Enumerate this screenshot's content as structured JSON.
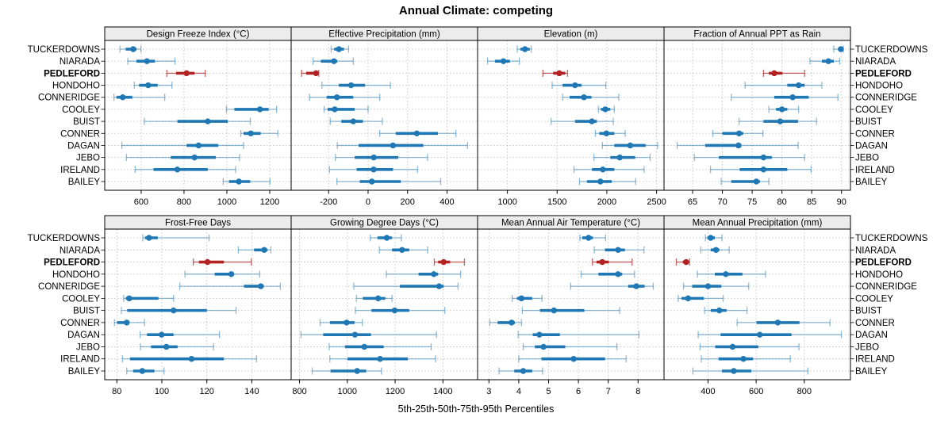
{
  "title": "Annual Climate: competing",
  "caption": "5th-25th-50th-75th-95th Percentiles",
  "style": {
    "series_color": "#1f77b4",
    "series_color_light": "rgba(31,119,180,0.5)",
    "highlight_color": "#b22222",
    "highlight_color_light": "rgba(178,34,34,0.7)",
    "strip_bg": "#ececec",
    "grid_color": "#c9c9c9",
    "border_color": "#000000",
    "panel_bg": "#ffffff"
  },
  "sites": [
    "TUCKERDOWNS",
    "NIARADA",
    "PEDLEFORD",
    "HONDOHO",
    "CONNERIDGE",
    "COOLEY",
    "BUIST",
    "CONNER",
    "DAGAN",
    "JEBO",
    "IRELAND",
    "BAILEY"
  ],
  "highlight_site": "PEDLEFORD",
  "chart_data": {
    "type": "multi-panel dot plot with 5-95 percentile error bars (lattice style)",
    "percentiles": [
      "5th",
      "25th",
      "50th",
      "75th",
      "95th"
    ],
    "site_labels_shown": "both left and right sides, highlight site in bold",
    "grid": "dashed light-gray vertical and horizontal gridlines",
    "panels": [
      {
        "title": "Design Freeze Index (°C)",
        "xlim": [
          430,
          1300
        ],
        "ticks": [
          600,
          800,
          1000,
          1200
        ],
        "series": [
          [
            501,
            528,
            563,
            578,
            599
          ],
          [
            538,
            578,
            627,
            664,
            758
          ],
          [
            720,
            763,
            812,
            849,
            899
          ],
          [
            568,
            590,
            633,
            677,
            744
          ],
          [
            473,
            485,
            514,
            559,
            710
          ],
          [
            998,
            1035,
            1154,
            1195,
            1232
          ],
          [
            615,
            769,
            911,
            1004,
            1109
          ],
          [
            1065,
            1078,
            1112,
            1158,
            1238
          ],
          [
            510,
            812,
            868,
            960,
            1078
          ],
          [
            531,
            738,
            849,
            948,
            1059
          ],
          [
            572,
            658,
            769,
            911,
            1041
          ],
          [
            983,
            1010,
            1056,
            1109,
            1201
          ]
        ]
      },
      {
        "title": "Effective Precipitation (mm)",
        "xlim": [
          -390,
          555
        ],
        "ticks": [
          -200,
          0,
          200,
          400
        ],
        "series": [
          [
            -187,
            -172,
            -148,
            -122,
            -99
          ],
          [
            -279,
            -239,
            -173,
            -156,
            -75
          ],
          [
            -337,
            -314,
            -264,
            -256,
            -250
          ],
          [
            -234,
            -149,
            -86,
            -15,
            113
          ],
          [
            -297,
            -210,
            -158,
            -75,
            59
          ],
          [
            -223,
            -205,
            -169,
            -68,
            0
          ],
          [
            -192,
            -136,
            -75,
            -26,
            72
          ],
          [
            59,
            140,
            247,
            354,
            445
          ],
          [
            -156,
            -48,
            126,
            280,
            504
          ],
          [
            -166,
            -68,
            29,
            153,
            301
          ],
          [
            -196,
            -58,
            28,
            126,
            251
          ],
          [
            -158,
            -42,
            19,
            166,
            368
          ]
        ]
      },
      {
        "title": "Elevation (m)",
        "xlim": [
          700,
          2575
        ],
        "ticks": [
          1000,
          1500,
          2000,
          2500
        ],
        "series": [
          [
            1100,
            1130,
            1176,
            1225,
            1240
          ],
          [
            800,
            875,
            960,
            1025,
            1120
          ],
          [
            1357,
            1460,
            1522,
            1582,
            1605
          ],
          [
            1450,
            1555,
            1680,
            1745,
            1990
          ],
          [
            1555,
            1625,
            1770,
            1845,
            2120
          ],
          [
            1915,
            1940,
            1985,
            2035,
            2075
          ],
          [
            1440,
            1680,
            1850,
            1900,
            2065
          ],
          [
            1885,
            1925,
            1995,
            2075,
            2185
          ],
          [
            1955,
            2075,
            2235,
            2390,
            2510
          ],
          [
            1870,
            2035,
            2130,
            2285,
            2435
          ],
          [
            1670,
            1850,
            1960,
            2075,
            2375
          ],
          [
            1725,
            1800,
            1935,
            2050,
            2290
          ]
        ]
      },
      {
        "title": "Fraction of Annual PPT as Rain",
        "xlim": [
          60.2,
          91.5
        ],
        "ticks": [
          65,
          70,
          75,
          80,
          85,
          90
        ],
        "series": [
          [
            88.7,
            89.4,
            89.9,
            90.1,
            90.3
          ],
          [
            84.7,
            86.7,
            87.8,
            88.7,
            89.7
          ],
          [
            76.9,
            77.8,
            78.7,
            80.1,
            83.8
          ],
          [
            73.8,
            80.9,
            82.8,
            83.8,
            86.7
          ],
          [
            71.5,
            78.7,
            81.8,
            84.5,
            89.4
          ],
          [
            77.8,
            79.0,
            80.0,
            80.9,
            82.8
          ],
          [
            72.8,
            76.9,
            79.7,
            82.7,
            85.8
          ],
          [
            68.4,
            70.0,
            72.8,
            73.5,
            76.8
          ],
          [
            62.4,
            67.1,
            72.7,
            73.2,
            82.7
          ],
          [
            65.3,
            69.4,
            76.9,
            78.3,
            83.8
          ],
          [
            68.0,
            72.9,
            76.9,
            80.9,
            84.9
          ],
          [
            69.8,
            71.5,
            75.7,
            76.3,
            77.8
          ]
        ]
      },
      {
        "title": "Frost-Free Days",
        "xlim": [
          74.6,
          157.5
        ],
        "ticks": [
          80,
          100,
          120,
          140
        ],
        "series": [
          [
            91.5,
            92.5,
            94.3,
            98.2,
            121
          ],
          [
            134,
            141,
            145.5,
            147,
            148.5
          ],
          [
            114,
            116.5,
            120.3,
            127.6,
            139.8
          ],
          [
            110.3,
            123.5,
            130.9,
            131.8,
            143.5
          ],
          [
            108,
            136.5,
            144,
            145.3,
            152.7
          ],
          [
            83,
            84,
            85.5,
            98.5,
            105.2
          ],
          [
            82,
            84.6,
            105.2,
            120,
            133
          ],
          [
            78.9,
            80.1,
            84.4,
            85.5,
            92.3
          ],
          [
            90.3,
            93.4,
            99.9,
            105.2,
            125.6
          ],
          [
            90.5,
            95.2,
            102,
            107,
            123
          ],
          [
            82.5,
            85.8,
            113.2,
            127.6,
            142.1
          ],
          [
            84.4,
            87.2,
            91.3,
            96.7,
            101
          ]
        ]
      },
      {
        "title": "Growing Degree Days (°C)",
        "xlim": [
          765,
          1545
        ],
        "ticks": [
          800,
          1000,
          1200,
          1400
        ],
        "series": [
          [
            1096,
            1126,
            1165,
            1187,
            1226
          ],
          [
            1134,
            1187,
            1229,
            1259,
            1336
          ],
          [
            1364,
            1380,
            1403,
            1430,
            1490
          ],
          [
            1163,
            1298,
            1362,
            1380,
            1474
          ],
          [
            1027,
            1220,
            1384,
            1403,
            1463
          ],
          [
            1038,
            1065,
            1129,
            1159,
            1187
          ],
          [
            1034,
            1101,
            1198,
            1259,
            1408
          ],
          [
            886,
            927,
            997,
            1030,
            1063
          ],
          [
            806,
            899,
            1032,
            1099,
            1373
          ],
          [
            924,
            990,
            1071,
            1152,
            1351
          ],
          [
            927,
            1001,
            1137,
            1253,
            1369
          ],
          [
            853,
            930,
            1041,
            1079,
            1143
          ]
        ]
      },
      {
        "title": "Mean Annual Air Temperature (°C)",
        "xlim": [
          2.62,
          8.87
        ],
        "ticks": [
          3,
          4,
          5,
          6,
          7,
          8
        ],
        "series": [
          [
            6.05,
            6.13,
            6.34,
            6.49,
            6.91
          ],
          [
            6.53,
            6.89,
            7.33,
            7.56,
            8.2
          ],
          [
            6.47,
            6.61,
            6.8,
            7.02,
            7.8
          ],
          [
            6.09,
            6.67,
            7.33,
            7.47,
            7.88
          ],
          [
            5.74,
            7.67,
            7.94,
            8.22,
            8.51
          ],
          [
            3.78,
            3.94,
            4.09,
            4.45,
            4.78
          ],
          [
            4.12,
            4.71,
            5.18,
            6.2,
            7.38
          ],
          [
            3.03,
            3.29,
            3.76,
            3.87,
            4.09
          ],
          [
            3.98,
            4.47,
            4.69,
            5.38,
            8.03
          ],
          [
            4.15,
            4.54,
            4.83,
            5.56,
            7.29
          ],
          [
            4.0,
            4.76,
            5.84,
            6.89,
            7.6
          ],
          [
            3.34,
            3.85,
            4.15,
            4.45,
            4.8
          ]
        ]
      },
      {
        "title": "Mean Annual Precipitation (mm)",
        "xlim": [
          217,
          992
        ],
        "ticks": [
          400,
          600,
          800
        ],
        "series": [
          [
            389,
            397,
            411,
            428,
            458
          ],
          [
            370,
            411,
            433,
            447,
            488
          ],
          [
            268,
            295,
            309,
            320,
            323
          ],
          [
            356,
            428,
            474,
            543,
            639
          ],
          [
            298,
            334,
            400,
            455,
            569
          ],
          [
            276,
            290,
            317,
            383,
            463
          ],
          [
            386,
            411,
            447,
            477,
            562
          ],
          [
            521,
            602,
            690,
            780,
            907
          ],
          [
            359,
            452,
            615,
            747,
            954
          ],
          [
            367,
            430,
            502,
            609,
            778
          ],
          [
            372,
            444,
            547,
            587,
            742
          ],
          [
            337,
            458,
            507,
            580,
            815
          ]
        ]
      }
    ]
  }
}
